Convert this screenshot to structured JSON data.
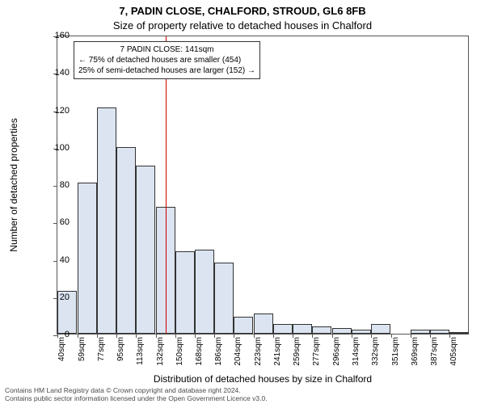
{
  "address": "7, PADIN CLOSE, CHALFORD, STROUD, GL6 8FB",
  "subtitle": "Size of property relative to detached houses in Chalford",
  "y_axis_label": "Number of detached properties",
  "x_axis_label": "Distribution of detached houses by size in Chalford",
  "footer_line1": "Contains HM Land Registry data © Crown copyright and database right 2024.",
  "footer_line2": "Contains public sector information licensed under the Open Government Licence v3.0.",
  "chart": {
    "type": "histogram",
    "bar_fill": "#dbe4f0",
    "bar_stroke": "#333333",
    "ref_line_color": "#cc0000",
    "ref_line_x_value": 141,
    "background_color": "#ffffff",
    "grid_color": "#e0e0e0",
    "ylim": [
      0,
      160
    ],
    "ytick_step": 20,
    "x_min": 40,
    "x_max": 424,
    "x_tick_values": [
      40,
      59,
      77,
      95,
      113,
      132,
      150,
      168,
      186,
      204,
      223,
      241,
      259,
      277,
      296,
      314,
      332,
      351,
      369,
      387,
      405
    ],
    "x_tick_suffix": "sqm",
    "bar_bin_width": 18,
    "values": [
      23,
      81,
      121,
      100,
      90,
      68,
      44,
      45,
      38,
      9,
      11,
      5,
      5,
      4,
      3,
      2,
      5,
      0,
      2,
      2,
      1
    ]
  },
  "annotation": {
    "line1": "7 PADIN CLOSE: 141sqm",
    "line2": "← 75% of detached houses are smaller (454)",
    "line3": "25% of semi-detached houses are larger (152) →"
  },
  "y_ticks": [
    0,
    20,
    40,
    60,
    80,
    100,
    120,
    140,
    160
  ]
}
